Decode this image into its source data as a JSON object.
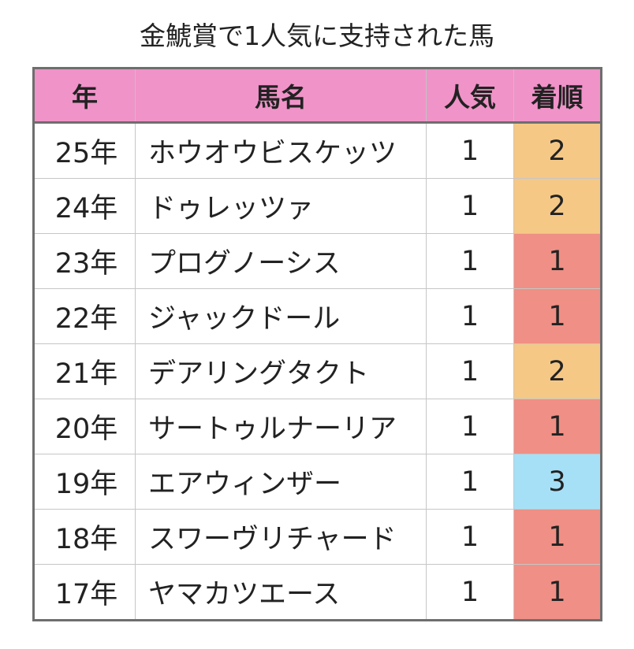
{
  "title": "金鯱賞で1人気に支持された馬",
  "headers": {
    "year": "年",
    "name": "馬名",
    "popularity": "人気",
    "finish": "着順"
  },
  "finish_colors": {
    "1": "#ef8f85",
    "2": "#f5c886",
    "3": "#a6e0f7"
  },
  "rows": [
    {
      "year": "25年",
      "name": "ホウオウビスケッツ",
      "popularity": "1",
      "finish": "2"
    },
    {
      "year": "24年",
      "name": "ドゥレッツァ",
      "popularity": "1",
      "finish": "2"
    },
    {
      "year": "23年",
      "name": "プログノーシス",
      "popularity": "1",
      "finish": "1"
    },
    {
      "year": "22年",
      "name": "ジャックドール",
      "popularity": "1",
      "finish": "1"
    },
    {
      "year": "21年",
      "name": "デアリングタクト",
      "popularity": "1",
      "finish": "2"
    },
    {
      "year": "20年",
      "name": "サートゥルナーリア",
      "popularity": "1",
      "finish": "1"
    },
    {
      "year": "19年",
      "name": "エアウィンザー",
      "popularity": "1",
      "finish": "3"
    },
    {
      "year": "18年",
      "name": "スワーヴリチャード",
      "popularity": "1",
      "finish": "1"
    },
    {
      "year": "17年",
      "name": "ヤマカツエース",
      "popularity": "1",
      "finish": "1"
    }
  ]
}
